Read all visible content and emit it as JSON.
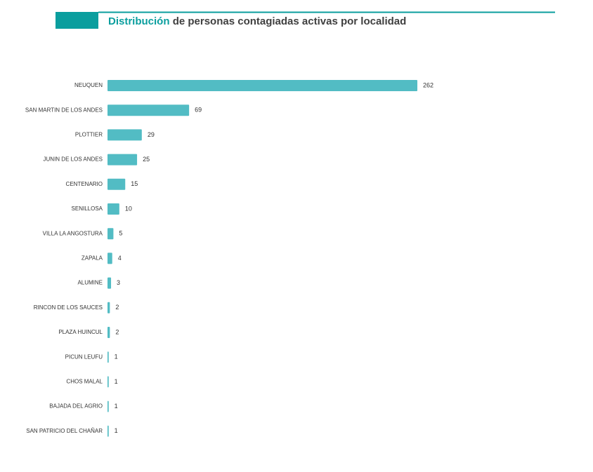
{
  "chart_data": {
    "type": "bar",
    "orientation": "horizontal",
    "title": [
      "Distribución",
      "de personas contagiadas activas por localidad"
    ],
    "categories": [
      "NEUQUEN",
      "SAN MARTIN DE LOS ANDES",
      "PLOTTIER",
      "JUNIN DE LOS ANDES",
      "CENTENARIO",
      "SENILLOSA",
      "VILLA LA ANGOSTURA",
      "ZAPALA",
      "ALUMINE",
      "RINCON DE LOS SAUCES",
      "PLAZA HUINCUL",
      "PICUN LEUFU",
      "CHOS MALAL",
      "BAJADA DEL AGRIO",
      "SAN PATRICIO DEL CHAÑAR"
    ],
    "values": [
      262,
      69,
      29,
      25,
      15,
      10,
      5,
      4,
      3,
      2,
      2,
      1,
      1,
      1,
      1
    ],
    "color": "#52bcc4",
    "accent_color": "#0a9e9e"
  }
}
